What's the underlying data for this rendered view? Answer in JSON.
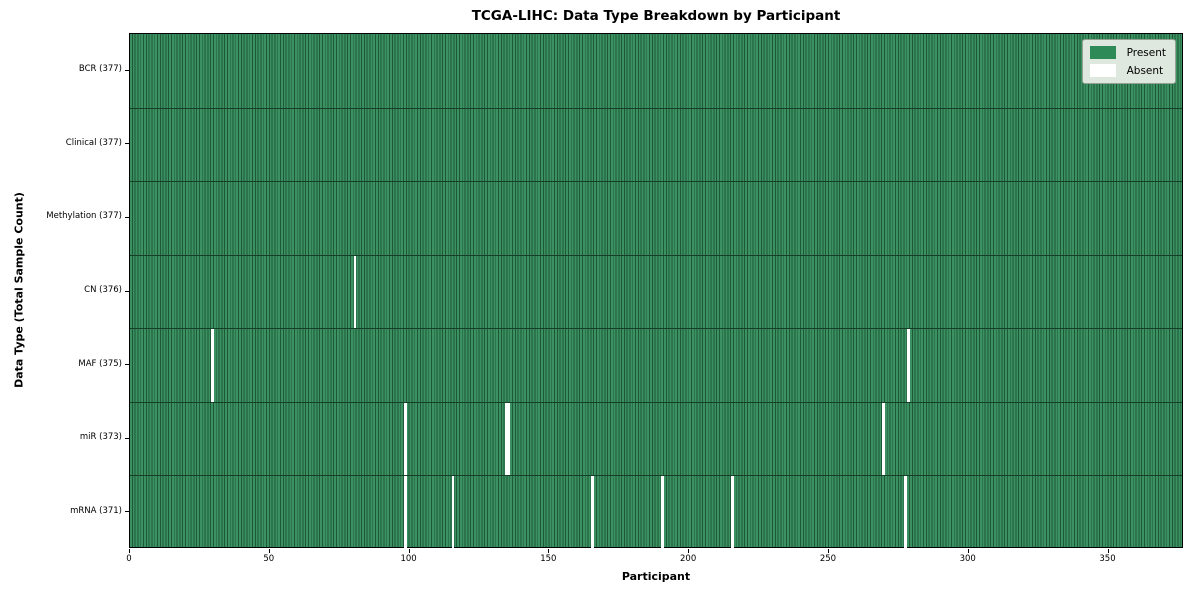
{
  "chart_data": {
    "type": "heatmap",
    "title": "TCGA-LIHC: Data Type Breakdown by Participant",
    "xlabel": "Participant",
    "ylabel": "Data Type (Total Sample Count)",
    "xlim": [
      0,
      377
    ],
    "n_participants": 377,
    "x_ticks": [
      0,
      50,
      100,
      150,
      200,
      250,
      300,
      350
    ],
    "grid": false,
    "legend_position": "upper right",
    "legend": [
      {
        "key": "present",
        "label": "Present",
        "color": "#2e8b57"
      },
      {
        "key": "absent",
        "label": "Absent",
        "color": "#ffffff"
      }
    ],
    "rows": [
      {
        "key": "bcr",
        "label": "BCR (377)",
        "total": 377,
        "absent_participants": []
      },
      {
        "key": "clinical",
        "label": "Clinical (377)",
        "total": 377,
        "absent_participants": []
      },
      {
        "key": "methylation",
        "label": "Methylation (377)",
        "total": 377,
        "absent_participants": []
      },
      {
        "key": "cn",
        "label": "CN (376)",
        "total": 376,
        "absent_participants": [
          80
        ]
      },
      {
        "key": "maf",
        "label": "MAF (375)",
        "total": 375,
        "absent_participants": [
          29,
          278
        ]
      },
      {
        "key": "mir",
        "label": "miR (373)",
        "total": 373,
        "absent_participants": [
          98,
          134,
          135,
          269
        ]
      },
      {
        "key": "mrna",
        "label": "mRNA (371)",
        "total": 371,
        "absent_participants": [
          98,
          115,
          165,
          190,
          215,
          277
        ]
      }
    ],
    "colors": {
      "present_green": "#2e8b57",
      "cell_stripe_light": "#3b9161",
      "cell_stripe_dark": "#1e5837",
      "row_divider": "#163f27",
      "absent_white": "#ffffff",
      "legend_background": "#dfe8df",
      "legend_border": "#93a193",
      "axis_text": "#000000"
    }
  }
}
